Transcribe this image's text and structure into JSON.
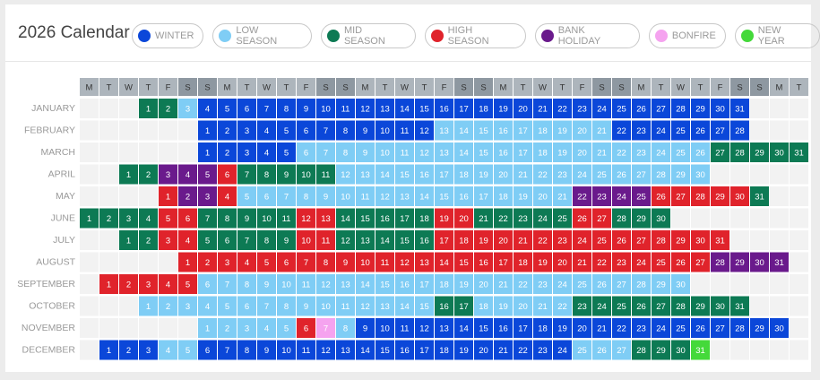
{
  "header": {
    "year": "2026",
    "title": "Calendar"
  },
  "legend": [
    {
      "label": "WINTER",
      "color": "#0b47d9"
    },
    {
      "label": "LOW SEASON",
      "color": "#7fcdf5"
    },
    {
      "label": "MID SEASON",
      "color": "#0d7a54"
    },
    {
      "label": "HIGH SEASON",
      "color": "#e0232b"
    },
    {
      "label": "BANK HOLIDAY",
      "color": "#6a1a8c"
    },
    {
      "label": "BONFIRE",
      "color": "#f5a3ef"
    },
    {
      "label": "NEW YEAR",
      "color": "#44d93a"
    }
  ],
  "weekdays": [
    "M",
    "T",
    "W",
    "T",
    "F",
    "S",
    "S"
  ],
  "months": [
    {
      "name": "JANUARY",
      "segments": [
        {
          "season": 2,
          "days": [
            1,
            2
          ]
        },
        {
          "season": 1,
          "days": [
            3
          ]
        },
        {
          "season": 0,
          "days": [
            4,
            5,
            6,
            7,
            8,
            9,
            10,
            11,
            12,
            13,
            14,
            15,
            16,
            17,
            18,
            19,
            20,
            21,
            22,
            23,
            24,
            25,
            26,
            27,
            28,
            29,
            30,
            31
          ]
        }
      ]
    },
    {
      "name": "FEBRUARY",
      "segments": [
        {
          "season": 0,
          "days": [
            1,
            2,
            3,
            4,
            5,
            6,
            7,
            8,
            9,
            10,
            11,
            12
          ]
        },
        {
          "season": 1,
          "days": [
            13,
            14,
            15,
            16,
            17,
            18,
            19,
            20,
            21
          ]
        },
        {
          "season": 0,
          "days": [
            22,
            23,
            24,
            25,
            26,
            27,
            28
          ]
        }
      ]
    },
    {
      "name": "MARCH",
      "segments": [
        {
          "season": 0,
          "days": [
            1,
            2,
            3,
            4,
            5
          ]
        },
        {
          "season": 1,
          "days": [
            6,
            7,
            8,
            9,
            10,
            11,
            12,
            13,
            14,
            15,
            16,
            17,
            18,
            19,
            20,
            21,
            22,
            23,
            24,
            25,
            26
          ]
        },
        {
          "season": 2,
          "days": [
            27,
            28,
            29,
            30,
            31
          ]
        }
      ]
    },
    {
      "name": "APRIL",
      "segments": [
        {
          "season": 2,
          "days": [
            1,
            2
          ]
        },
        {
          "season": 4,
          "days": [
            3,
            4,
            5
          ]
        },
        {
          "season": 3,
          "days": [
            6
          ]
        },
        {
          "season": 2,
          "days": [
            7,
            8,
            9,
            10,
            11
          ]
        },
        {
          "season": 1,
          "days": [
            12,
            13,
            14,
            15,
            16,
            17,
            18,
            19,
            20,
            21,
            22,
            23,
            24,
            25,
            26,
            27,
            28,
            29,
            30
          ]
        }
      ]
    },
    {
      "name": "MAY",
      "segments": [
        {
          "season": 3,
          "days": [
            1
          ]
        },
        {
          "season": 4,
          "days": [
            2,
            3
          ]
        },
        {
          "season": 3,
          "days": [
            4
          ]
        },
        {
          "season": 1,
          "days": [
            5,
            6,
            7,
            8,
            9,
            10,
            11,
            12,
            13,
            14,
            15,
            16,
            17,
            18,
            19,
            20,
            21
          ]
        },
        {
          "season": 4,
          "days": [
            22,
            23,
            24,
            25
          ]
        },
        {
          "season": 3,
          "days": [
            26,
            27,
            28,
            29,
            30
          ]
        },
        {
          "season": 2,
          "days": [
            31
          ]
        }
      ]
    },
    {
      "name": "JUNE",
      "segments": [
        {
          "season": 2,
          "days": [
            1,
            2,
            3,
            4
          ]
        },
        {
          "season": 3,
          "days": [
            5,
            6
          ]
        },
        {
          "season": 2,
          "days": [
            7,
            8,
            9,
            10,
            11
          ]
        },
        {
          "season": 3,
          "days": [
            12,
            13
          ]
        },
        {
          "season": 2,
          "days": [
            14,
            15,
            16,
            17,
            18
          ]
        },
        {
          "season": 3,
          "days": [
            19,
            20
          ]
        },
        {
          "season": 2,
          "days": [
            21,
            22,
            23,
            24,
            25
          ]
        },
        {
          "season": 3,
          "days": [
            26,
            27
          ]
        },
        {
          "season": 2,
          "days": [
            28,
            29,
            30
          ]
        }
      ]
    },
    {
      "name": "JULY",
      "segments": [
        {
          "season": 2,
          "days": [
            1,
            2
          ]
        },
        {
          "season": 3,
          "days": [
            3,
            4
          ]
        },
        {
          "season": 2,
          "days": [
            5,
            6,
            7,
            8,
            9
          ]
        },
        {
          "season": 3,
          "days": [
            10,
            11
          ]
        },
        {
          "season": 2,
          "days": [
            12,
            13,
            14,
            15,
            16
          ]
        },
        {
          "season": 3,
          "days": [
            17,
            18,
            19,
            20,
            21,
            22,
            23,
            24,
            25,
            26,
            27,
            28,
            29,
            30,
            31
          ]
        }
      ]
    },
    {
      "name": "AUGUST",
      "segments": [
        {
          "season": 3,
          "days": [
            1,
            2,
            3,
            4,
            5,
            6,
            7,
            8,
            9,
            10,
            11,
            12,
            13,
            14,
            15,
            16,
            17,
            18,
            19,
            20,
            21,
            22,
            23,
            24,
            25,
            26,
            27
          ]
        },
        {
          "season": 4,
          "days": [
            28,
            29,
            30,
            31
          ]
        }
      ]
    },
    {
      "name": "SEPTEMBER",
      "segments": [
        {
          "season": 3,
          "days": [
            1,
            2,
            3,
            4,
            5
          ]
        },
        {
          "season": 1,
          "days": [
            6,
            7,
            8,
            9,
            10,
            11,
            12,
            13,
            14,
            15,
            16,
            17,
            18,
            19,
            20,
            21,
            22,
            23,
            24,
            25,
            26,
            27,
            28,
            29,
            30
          ]
        }
      ]
    },
    {
      "name": "OCTOBER",
      "segments": [
        {
          "season": 1,
          "days": [
            1,
            2,
            3,
            4,
            5,
            6,
            7,
            8,
            9,
            10,
            11,
            12,
            13,
            14,
            15
          ]
        },
        {
          "season": 2,
          "days": [
            16,
            17
          ]
        },
        {
          "season": 1,
          "days": [
            18,
            19,
            20,
            21,
            22
          ]
        },
        {
          "season": 2,
          "days": [
            23,
            24,
            25,
            26,
            27,
            28,
            29,
            30,
            31
          ]
        }
      ]
    },
    {
      "name": "NOVEMBER",
      "segments": [
        {
          "season": 1,
          "days": [
            1,
            2,
            3,
            4,
            5
          ]
        },
        {
          "season": 3,
          "days": [
            6
          ]
        },
        {
          "season": 5,
          "days": [
            7
          ]
        },
        {
          "season": 1,
          "days": [
            8
          ]
        },
        {
          "season": 0,
          "days": [
            9,
            10,
            11,
            12,
            13,
            14,
            15,
            16,
            17,
            18,
            19,
            20,
            21,
            22,
            23,
            24,
            25,
            26,
            27,
            28,
            29,
            30
          ]
        }
      ]
    },
    {
      "name": "DECEMBER",
      "segments": [
        {
          "season": 0,
          "days": [
            1,
            2,
            3
          ]
        },
        {
          "season": 1,
          "days": [
            4,
            5
          ]
        },
        {
          "season": 0,
          "days": [
            6,
            7,
            8,
            9,
            10,
            11,
            12,
            13,
            14,
            15,
            16,
            17,
            18,
            19,
            20,
            21,
            22,
            23,
            24
          ]
        },
        {
          "season": 1,
          "days": [
            25,
            26,
            27
          ]
        },
        {
          "season": 2,
          "days": [
            28,
            29,
            30
          ]
        },
        {
          "season": 6,
          "days": [
            31
          ]
        }
      ]
    }
  ]
}
